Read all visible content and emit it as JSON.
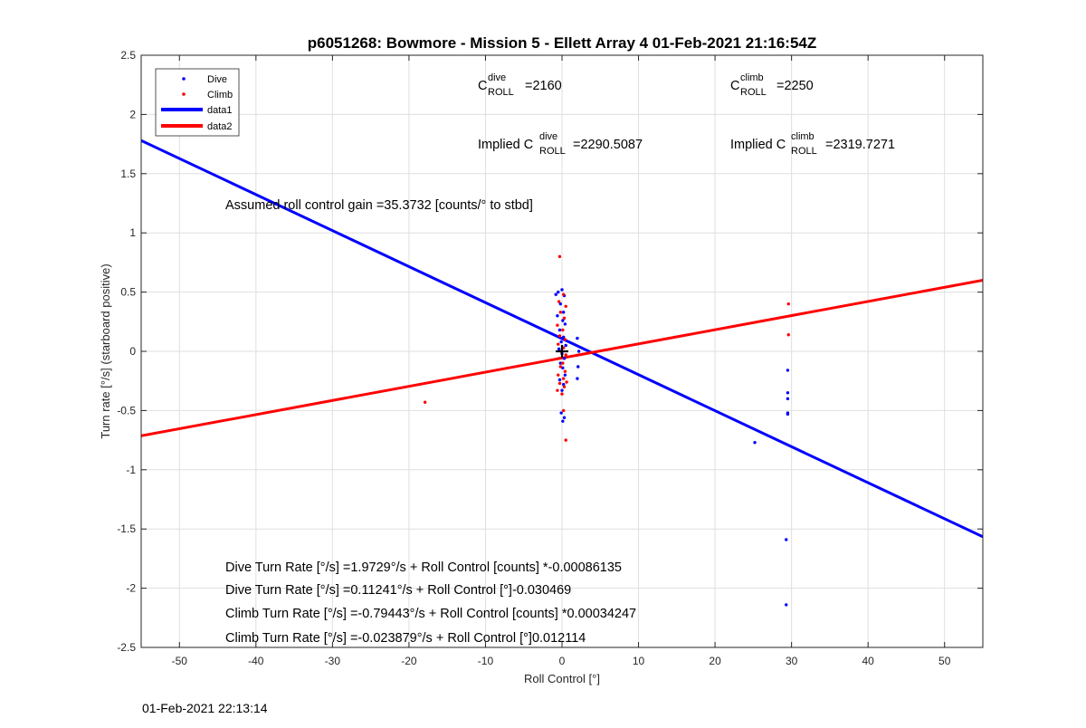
{
  "chart_data": {
    "type": "scatter",
    "title": "p6051268: Bowmore - Mission 5 - Ellett Array 4 01-Feb-2021 21:16:54Z",
    "xlabel": "Roll Control [°]",
    "ylabel": "Turn rate [°/s] (starboard positive)",
    "xlim": [
      -55,
      55
    ],
    "ylim": [
      -2.5,
      2.5
    ],
    "xticks": [
      -50,
      -40,
      -30,
      -20,
      -10,
      0,
      10,
      20,
      30,
      40,
      50
    ],
    "yticks": [
      -2.5,
      -2,
      -1.5,
      -1,
      -0.5,
      0,
      0.5,
      1,
      1.5,
      2,
      2.5
    ],
    "grid": true,
    "legend_position": "top-left",
    "series": [
      {
        "name": "Dive",
        "kind": "points",
        "color": "#0000ff",
        "points": [
          [
            -0.8,
            0.48
          ],
          [
            -0.5,
            0.5
          ],
          [
            0.0,
            0.52
          ],
          [
            0.3,
            0.47
          ],
          [
            -0.2,
            0.4
          ],
          [
            0.2,
            0.33
          ],
          [
            -0.6,
            0.3
          ],
          [
            0.1,
            0.26
          ],
          [
            0.4,
            0.23
          ],
          [
            -0.3,
            0.18
          ],
          [
            0.2,
            0.12
          ],
          [
            -0.1,
            0.08
          ],
          [
            0.5,
            0.05
          ],
          [
            -0.4,
            0.02
          ],
          [
            0.0,
            -0.02
          ],
          [
            0.3,
            -0.06
          ],
          [
            -0.2,
            -0.1
          ],
          [
            0.1,
            -0.14
          ],
          [
            0.4,
            -0.2
          ],
          [
            -0.3,
            -0.24
          ],
          [
            0.2,
            -0.28
          ],
          [
            0.0,
            -0.33
          ],
          [
            -0.1,
            -0.52
          ],
          [
            0.3,
            -0.56
          ],
          [
            0.1,
            -0.59
          ],
          [
            2.0,
            0.11
          ],
          [
            2.2,
            0.0
          ],
          [
            2.1,
            -0.13
          ],
          [
            2.0,
            -0.23
          ],
          [
            25.2,
            -0.77
          ],
          [
            29.5,
            -0.16
          ],
          [
            29.5,
            -0.35
          ],
          [
            29.5,
            -0.4
          ],
          [
            29.5,
            -0.52
          ],
          [
            29.5,
            -0.53
          ],
          [
            29.3,
            -1.59
          ],
          [
            29.3,
            -2.14
          ]
        ]
      },
      {
        "name": "Climb",
        "kind": "points",
        "color": "#ff0000",
        "points": [
          [
            -0.3,
            0.8
          ],
          [
            0.2,
            0.48
          ],
          [
            -0.4,
            0.42
          ],
          [
            0.5,
            0.38
          ],
          [
            -0.2,
            0.33
          ],
          [
            0.3,
            0.28
          ],
          [
            -0.6,
            0.22
          ],
          [
            0.1,
            0.18
          ],
          [
            -0.3,
            0.13
          ],
          [
            0.4,
            0.1
          ],
          [
            -0.5,
            0.06
          ],
          [
            0.2,
            0.03
          ],
          [
            -0.1,
            0.0
          ],
          [
            0.5,
            -0.03
          ],
          [
            -0.4,
            -0.06
          ],
          [
            0.1,
            -0.1
          ],
          [
            -0.2,
            -0.13
          ],
          [
            0.4,
            -0.17
          ],
          [
            -0.5,
            -0.2
          ],
          [
            0.2,
            -0.23
          ],
          [
            -0.3,
            -0.27
          ],
          [
            0.3,
            -0.3
          ],
          [
            -0.6,
            -0.33
          ],
          [
            0.0,
            -0.36
          ],
          [
            0.6,
            -0.26
          ],
          [
            0.2,
            -0.5
          ],
          [
            0.5,
            -0.75
          ],
          [
            -17.9,
            -0.43
          ],
          [
            29.6,
            0.4
          ],
          [
            29.6,
            0.14
          ]
        ]
      },
      {
        "name": "data1",
        "kind": "line",
        "color": "#0000ff",
        "x": [
          -55,
          55
        ],
        "y": [
          1.7799,
          -1.5658
        ]
      },
      {
        "name": "data2",
        "kind": "line",
        "color": "#ff0000",
        "x": [
          -55,
          55
        ],
        "y": [
          -0.7135,
          0.6003
        ]
      }
    ],
    "centroid_marker": {
      "x": 0,
      "y": 0,
      "symbol": "+"
    }
  },
  "annotations": {
    "c_dive": {
      "base": "C",
      "sup": "dive",
      "sub": "ROLL",
      "value": "=2160"
    },
    "c_climb": {
      "base": "C",
      "sup": "climb",
      "sub": "ROLL",
      "value": "=2250"
    },
    "implied_dive": {
      "prefix": "Implied C",
      "sup": "dive",
      "sub": "ROLL",
      "value": "=2290.5087"
    },
    "implied_climb": {
      "prefix": "Implied C",
      "sup": "climb",
      "sub": "ROLL",
      "value": "=2319.7271"
    },
    "assumed_gain": "Assumed roll control gain =35.3732 [counts/° to stbd]",
    "eq1": "Dive Turn Rate [°/s] =1.9729°/s + Roll Control [counts] *-0.00086135",
    "eq2": "Dive Turn Rate [°/s] =0.11241°/s + Roll Control [°]-0.030469",
    "eq3": "Climb Turn Rate [°/s] =-0.79443°/s + Roll Control [counts] *0.00034247",
    "eq4": "Climb Turn Rate [°/s] =-0.023879°/s + Roll Control [°]0.012114"
  },
  "footer": {
    "timestamp": "01-Feb-2021 22:13:14"
  }
}
